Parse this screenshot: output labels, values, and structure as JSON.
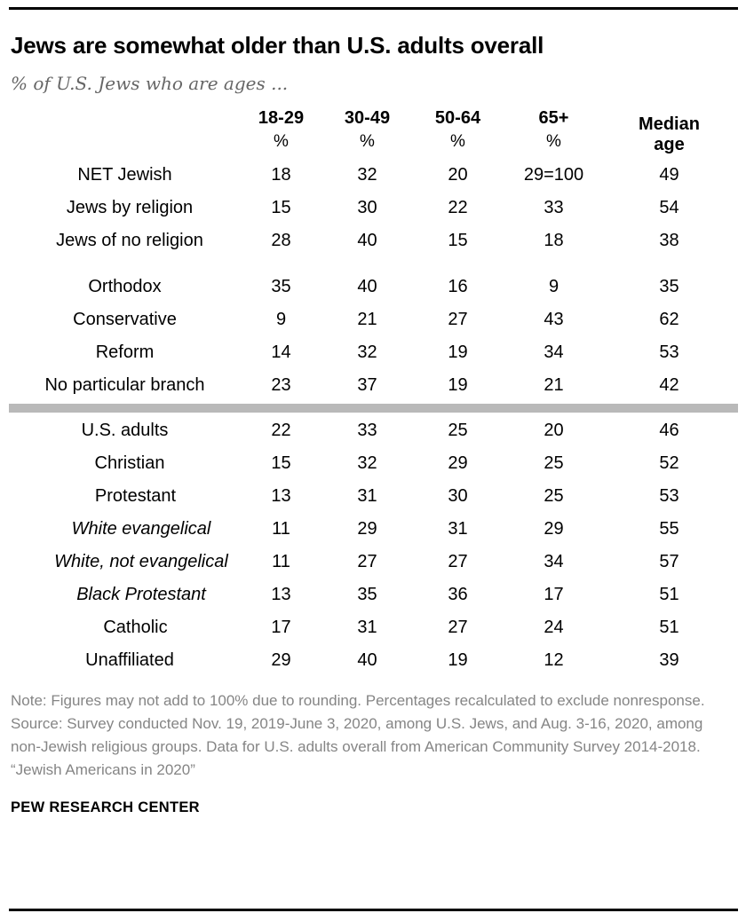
{
  "note": "Note: Figures may not add to 100% due to rounding. Percentages recalculated to exclude nonresponse.",
  "source": "Source: Survey conducted Nov. 19, 2019-June 3, 2020, among U.S. Jews, and Aug. 3-16, 2020, among non-Jewish religious groups. Data for U.S. adults overall from American Community Survey 2014-2018.",
  "report": "“Jewish Americans in 2020”",
  "brand": "PEW RESEARCH CENTER",
  "colors": {
    "divider_gray": "#b9b9b9",
    "note_gray": "#858585",
    "subtitle_gray": "#666666",
    "text_black": "#000000"
  },
  "chart_data": {
    "type": "table",
    "title": "Jews are somewhat older than U.S. adults overall",
    "subtitle": "% of U.S. Jews who are ages ...",
    "columns": [
      {
        "label": "18-29",
        "sub": "%"
      },
      {
        "label": "30-49",
        "sub": "%"
      },
      {
        "label": "50-64",
        "sub": "%"
      },
      {
        "label": "65+",
        "sub": "%"
      },
      {
        "label": "Median age",
        "sub": ""
      }
    ],
    "rows": [
      {
        "label": "NET Jewish",
        "indent": 0,
        "italic": false,
        "values": [
          "18",
          "32",
          "20",
          "29=100",
          "49"
        ]
      },
      {
        "label": "Jews by religion",
        "indent": 1,
        "italic": false,
        "values": [
          "15",
          "30",
          "22",
          "33",
          "54"
        ]
      },
      {
        "label": "Jews of no religion",
        "indent": 1,
        "italic": false,
        "values": [
          "28",
          "40",
          "15",
          "18",
          "38"
        ]
      },
      {
        "type": "gap"
      },
      {
        "label": "Orthodox",
        "indent": 0,
        "italic": false,
        "values": [
          "35",
          "40",
          "16",
          "9",
          "35"
        ]
      },
      {
        "label": "Conservative",
        "indent": 0,
        "italic": false,
        "values": [
          "9",
          "21",
          "27",
          "43",
          "62"
        ]
      },
      {
        "label": "Reform",
        "indent": 0,
        "italic": false,
        "values": [
          "14",
          "32",
          "19",
          "34",
          "53"
        ]
      },
      {
        "label": "No particular branch",
        "indent": 0,
        "italic": false,
        "values": [
          "23",
          "37",
          "19",
          "21",
          "42"
        ]
      },
      {
        "type": "divider"
      },
      {
        "label": "U.S. adults",
        "indent": 0,
        "italic": false,
        "values": [
          "22",
          "33",
          "25",
          "20",
          "46"
        ]
      },
      {
        "label": "Christian",
        "indent": 1,
        "italic": false,
        "values": [
          "15",
          "32",
          "29",
          "25",
          "52"
        ]
      },
      {
        "label": "Protestant",
        "indent": 2,
        "italic": false,
        "values": [
          "13",
          "31",
          "30",
          "25",
          "53"
        ]
      },
      {
        "label": "White evangelical",
        "indent": 3,
        "italic": true,
        "values": [
          "11",
          "29",
          "31",
          "29",
          "55"
        ]
      },
      {
        "label": "White, not evangelical",
        "indent": 3,
        "italic": true,
        "values": [
          "11",
          "27",
          "27",
          "34",
          "57"
        ]
      },
      {
        "label": "Black Protestant",
        "indent": 3,
        "italic": true,
        "values": [
          "13",
          "35",
          "36",
          "17",
          "51"
        ]
      },
      {
        "label": "Catholic",
        "indent": 2,
        "italic": false,
        "values": [
          "17",
          "31",
          "27",
          "24",
          "51"
        ]
      },
      {
        "label": "Unaffiliated",
        "indent": 1,
        "italic": false,
        "values": [
          "29",
          "40",
          "19",
          "12",
          "39"
        ]
      }
    ]
  }
}
